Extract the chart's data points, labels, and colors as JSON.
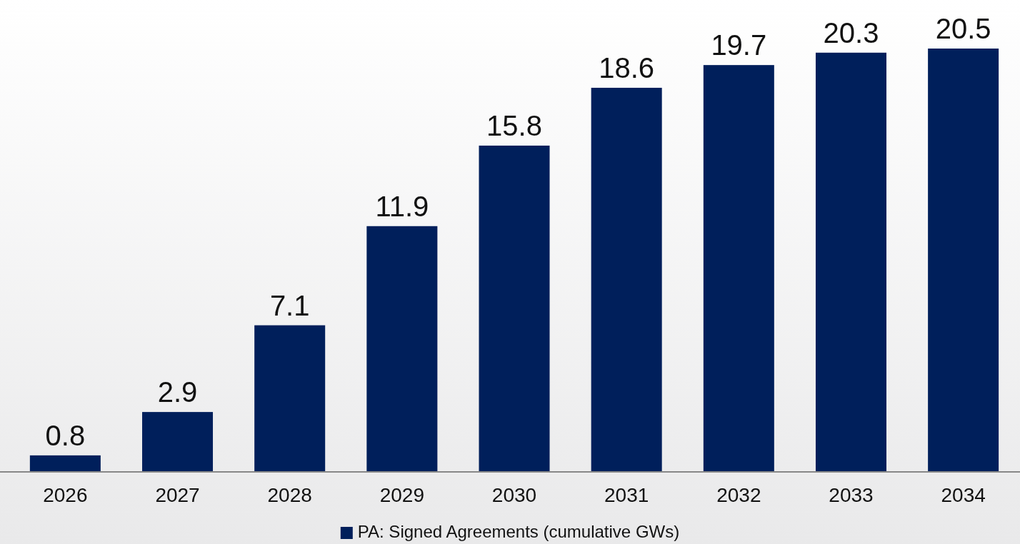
{
  "chart_data": {
    "type": "bar",
    "categories": [
      "2026",
      "2027",
      "2028",
      "2029",
      "2030",
      "2031",
      "2032",
      "2033",
      "2034"
    ],
    "series": [
      {
        "name": "PA: Signed Agreements (cumulative GWs)",
        "color": "#001f5b",
        "values": [
          0.8,
          2.9,
          7.1,
          11.9,
          15.8,
          18.6,
          19.7,
          20.3,
          20.5
        ]
      }
    ],
    "data_labels": true,
    "legend": "bottom"
  }
}
